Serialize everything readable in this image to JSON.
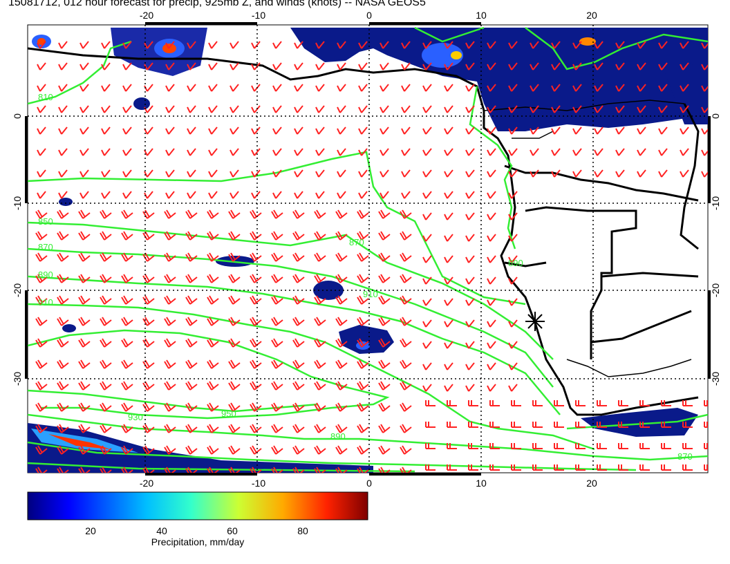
{
  "title": "15081712, 012 hour forecast for precip, 925mb Z, and winds (knots) -- NASA GEOS5",
  "map": {
    "lon_ticks": [
      "-20",
      "-10",
      "0",
      "10",
      "20"
    ],
    "lat_ticks": [
      "0",
      "-10",
      "-20",
      "-30"
    ],
    "contour_labels": [
      "810",
      "850",
      "870",
      "890",
      "910",
      "930",
      "950",
      "870",
      "890",
      "910",
      "870",
      "890"
    ],
    "marker": "station-star",
    "colors": {
      "contours": "#33ee33",
      "wind_barbs": "#ff2222",
      "coastline": "#000000",
      "precip_low": "#0a1a8a"
    }
  },
  "colorbar": {
    "ticks": [
      "20",
      "40",
      "60",
      "80"
    ],
    "label": "Precipitation, mm/day",
    "colors": [
      "#00007f",
      "#0000ff",
      "#00bfff",
      "#33ffcc",
      "#ccff33",
      "#ffaa00",
      "#ff2200",
      "#7f0000"
    ]
  }
}
